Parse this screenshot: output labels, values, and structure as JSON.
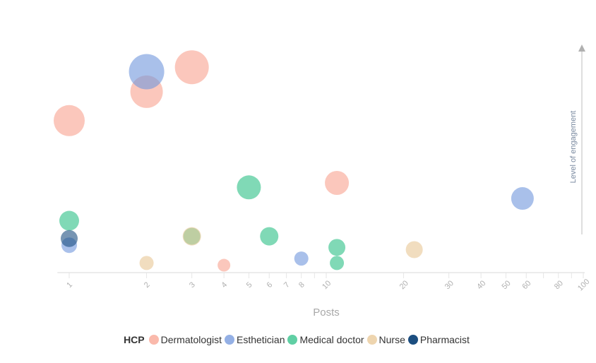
{
  "chart_data": {
    "type": "scatter",
    "subtype": "bubble",
    "xlabel": "Posts",
    "ylabel": "Level of engagement",
    "xscale": "log",
    "xlim": [
      0.9,
      100
    ],
    "ylim": [
      0,
      100
    ],
    "xticks": [
      1,
      2,
      3,
      4,
      5,
      6,
      7,
      8,
      9,
      10,
      20,
      30,
      40,
      50,
      60,
      70,
      80,
      90,
      100
    ],
    "xtick_labels": [
      "1",
      "2",
      "3",
      "4",
      "5",
      "6",
      "7",
      "8",
      "10",
      "20",
      "30",
      "40",
      "50",
      "60",
      "80",
      "100"
    ],
    "grid": false,
    "legend": {
      "title": "HCP",
      "placement": "bottom"
    },
    "series": [
      {
        "name": "Dermatologist",
        "color": "#f8a28f",
        "points": [
          {
            "x": 1,
            "y": 68,
            "size": 22
          },
          {
            "x": 2,
            "y": 81,
            "size": 23
          },
          {
            "x": 3,
            "y": 92,
            "size": 24
          },
          {
            "x": 11,
            "y": 40,
            "size": 17
          },
          {
            "x": 4,
            "y": 3,
            "size": 9
          }
        ]
      },
      {
        "name": "Esthetician",
        "color": "#7096dc",
        "points": [
          {
            "x": 2,
            "y": 90,
            "size": 25
          },
          {
            "x": 58,
            "y": 33,
            "size": 16
          },
          {
            "x": 8,
            "y": 6,
            "size": 10
          },
          {
            "x": 1,
            "y": 12,
            "size": 11
          }
        ]
      },
      {
        "name": "Medical doctor",
        "color": "#2bbf85",
        "points": [
          {
            "x": 1,
            "y": 23,
            "size": 14
          },
          {
            "x": 5,
            "y": 38,
            "size": 17
          },
          {
            "x": 6,
            "y": 16,
            "size": 13
          },
          {
            "x": 11,
            "y": 11,
            "size": 12
          },
          {
            "x": 11,
            "y": 4,
            "size": 10
          },
          {
            "x": 3,
            "y": 16,
            "size": 12
          }
        ]
      },
      {
        "name": "Nurse",
        "color": "#e8c794",
        "points": [
          {
            "x": 2,
            "y": 4,
            "size": 10
          },
          {
            "x": 22,
            "y": 10,
            "size": 12
          },
          {
            "x": 3,
            "y": 16,
            "size": 13
          }
        ]
      },
      {
        "name": "Pharmacist",
        "color": "#1c4e80",
        "points": [
          {
            "x": 1,
            "y": 15,
            "size": 12
          }
        ]
      }
    ]
  }
}
